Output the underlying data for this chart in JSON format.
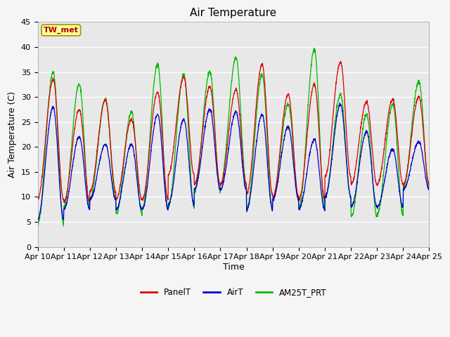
{
  "title": "Air Temperature",
  "xlabel": "Time",
  "ylabel": "Air Temperature (C)",
  "ylim": [
    0,
    45
  ],
  "yticks": [
    0,
    5,
    10,
    15,
    20,
    25,
    30,
    35,
    40,
    45
  ],
  "fig_bg_color": "#f5f5f5",
  "plot_bg_color": "#e8e8e8",
  "grid_color": "#ffffff",
  "annotation_text": "TW_met",
  "annotation_color": "#aa0000",
  "annotation_bg": "#ffff99",
  "annotation_border": "#999900",
  "legend_labels": [
    "PanelT",
    "AirT",
    "AM25T_PRT"
  ],
  "legend_colors": [
    "#dd0000",
    "#0000cc",
    "#00bb00"
  ],
  "n_days": 15,
  "points_per_day": 144,
  "panel_t_peaks": [
    33.5,
    27.5,
    29.5,
    25.5,
    31.0,
    34.0,
    32.0,
    31.5,
    36.5,
    30.5,
    32.5,
    37.0,
    29.0,
    29.5,
    30.0
  ],
  "air_t_peaks": [
    28.0,
    22.0,
    20.5,
    20.5,
    26.5,
    25.5,
    27.5,
    27.0,
    26.5,
    24.0,
    21.5,
    28.5,
    23.0,
    19.5,
    21.0
  ],
  "am25_peaks": [
    35.0,
    32.5,
    29.5,
    27.0,
    36.5,
    34.5,
    35.0,
    37.8,
    34.5,
    28.5,
    39.5,
    30.5,
    26.5,
    28.5,
    33.0
  ],
  "panel_t_mins": [
    9.5,
    9.0,
    11.0,
    9.5,
    9.5,
    14.5,
    12.5,
    12.5,
    10.5,
    10.0,
    9.5,
    14.0,
    12.5,
    12.5,
    12.5
  ],
  "air_t_mins": [
    5.5,
    7.5,
    9.5,
    7.5,
    7.5,
    8.5,
    11.5,
    11.5,
    7.5,
    9.5,
    7.5,
    10.0,
    8.0,
    8.0,
    11.5
  ],
  "am25_mins": [
    4.5,
    8.0,
    9.5,
    6.5,
    7.5,
    8.0,
    11.0,
    12.5,
    7.5,
    9.5,
    7.5,
    10.0,
    6.0,
    6.5,
    12.0
  ],
  "tick_labels": [
    "Apr 10",
    "Apr 11",
    "Apr 12",
    "Apr 13",
    "Apr 14",
    "Apr 15",
    "Apr 16",
    "Apr 17",
    "Apr 18",
    "Apr 19",
    "Apr 20",
    "Apr 21",
    "Apr 22",
    "Apr 23",
    "Apr 24",
    "Apr 25"
  ],
  "title_fontsize": 11,
  "axis_fontsize": 9,
  "tick_fontsize": 8
}
